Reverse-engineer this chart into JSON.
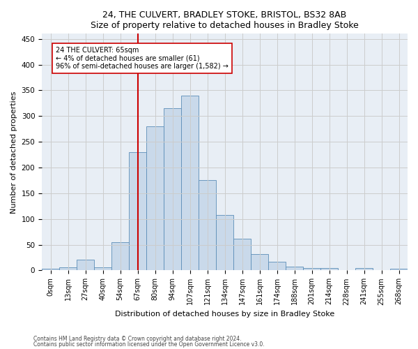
{
  "title1": "24, THE CULVERT, BRADLEY STOKE, BRISTOL, BS32 8AB",
  "title2": "Size of property relative to detached houses in Bradley Stoke",
  "xlabel": "Distribution of detached houses by size in Bradley Stoke",
  "ylabel": "Number of detached properties",
  "bar_labels": [
    "0sqm",
    "13sqm",
    "27sqm",
    "40sqm",
    "54sqm",
    "67sqm",
    "80sqm",
    "94sqm",
    "107sqm",
    "121sqm",
    "134sqm",
    "147sqm",
    "161sqm",
    "174sqm",
    "188sqm",
    "201sqm",
    "214sqm",
    "228sqm",
    "241sqm",
    "255sqm",
    "268sqm"
  ],
  "bar_values": [
    3,
    6,
    21,
    6,
    55,
    230,
    280,
    315,
    340,
    175,
    108,
    62,
    32,
    17,
    8,
    4,
    4,
    0,
    4,
    0,
    3
  ],
  "bar_color": "#c9d9ea",
  "bar_edge_color": "#5b8db8",
  "bar_width": 1.0,
  "vline_x": 5,
  "vline_color": "#cc0000",
  "annotation_text": "24 THE CULVERT: 65sqm\n← 4% of detached houses are smaller (61)\n96% of semi-detached houses are larger (1,582) →",
  "annotation_box_color": "#ffffff",
  "annotation_box_edge_color": "#cc0000",
  "ylim": [
    0,
    460
  ],
  "yticks": [
    0,
    50,
    100,
    150,
    200,
    250,
    300,
    350,
    400,
    450
  ],
  "footer1": "Contains HM Land Registry data © Crown copyright and database right 2024.",
  "footer2": "Contains public sector information licensed under the Open Government Licence v3.0.",
  "bg_color": "#ffffff",
  "plot_bg_color": "#e8eef5",
  "grid_color": "#cccccc"
}
